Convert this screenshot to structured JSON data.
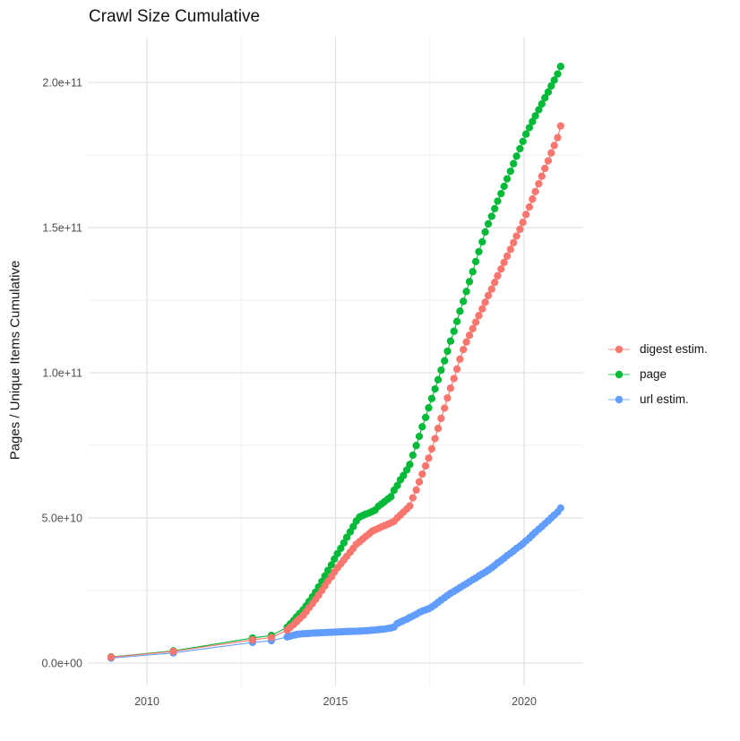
{
  "chart_data": {
    "type": "scatter",
    "title": "Crawl Size Cumulative",
    "xlabel": "",
    "ylabel": "Pages / Unique Items Cumulative",
    "values_unit": "1e9 (billions); y axis shown in scientific notation",
    "grid": "major and minor, light gray on white",
    "legend_position": "right",
    "xlim": [
      2008.5,
      2021.6
    ],
    "ylim": [
      0,
      215000000000
    ],
    "x_ticks": [
      {
        "value": 2010,
        "label": "2010"
      },
      {
        "value": 2015,
        "label": "2015"
      },
      {
        "value": 2020,
        "label": "2020"
      }
    ],
    "x_minor_ticks": [
      2012.5,
      2017.5
    ],
    "y_ticks": [
      {
        "value_e9": 0,
        "label": "0.0e+00"
      },
      {
        "value_e9": 50,
        "label": "5.0e+10"
      },
      {
        "value_e9": 100,
        "label": "1.0e+11"
      },
      {
        "value_e9": 150,
        "label": "1.5e+11"
      },
      {
        "value_e9": 200,
        "label": "2.0e+11"
      }
    ],
    "y_minor_ticks_e9": [
      25,
      75,
      125,
      175
    ],
    "series": [
      {
        "name": "digest estim.",
        "color": "#F8766D",
        "points_year_value_e9": [
          [
            2009.05,
            2.0
          ],
          [
            2010.7,
            4.0
          ],
          [
            2012.8,
            8.0
          ],
          [
            2013.3,
            8.8
          ],
          [
            2013.72,
            11.3
          ],
          [
            2013.8,
            12.3
          ],
          [
            2013.89,
            13.3
          ],
          [
            2013.97,
            14.3
          ],
          [
            2014.05,
            15.3
          ],
          [
            2014.14,
            16.4
          ],
          [
            2014.22,
            17.7
          ],
          [
            2014.3,
            19.1
          ],
          [
            2014.39,
            20.5
          ],
          [
            2014.47,
            21.9
          ],
          [
            2014.55,
            23.4
          ],
          [
            2014.64,
            25.0
          ],
          [
            2014.72,
            26.6
          ],
          [
            2014.8,
            28.2
          ],
          [
            2014.89,
            29.7
          ],
          [
            2014.97,
            31.3
          ],
          [
            2015.05,
            32.8
          ],
          [
            2015.14,
            34.2
          ],
          [
            2015.22,
            35.5
          ],
          [
            2015.3,
            36.8
          ],
          [
            2015.39,
            38.2
          ],
          [
            2015.47,
            39.5
          ],
          [
            2015.55,
            40.9
          ],
          [
            2015.64,
            41.8
          ],
          [
            2015.72,
            42.7
          ],
          [
            2015.8,
            43.6
          ],
          [
            2015.89,
            44.5
          ],
          [
            2015.97,
            45.4
          ],
          [
            2016.05,
            45.9
          ],
          [
            2016.14,
            46.4
          ],
          [
            2016.22,
            46.9
          ],
          [
            2016.3,
            47.3
          ],
          [
            2016.39,
            47.8
          ],
          [
            2016.47,
            48.3
          ],
          [
            2016.55,
            48.8
          ],
          [
            2016.64,
            50.0
          ],
          [
            2016.72,
            51.0
          ],
          [
            2016.8,
            52.0
          ],
          [
            2016.89,
            53.1
          ],
          [
            2016.97,
            54.1
          ],
          [
            2017.05,
            56.9
          ],
          [
            2017.14,
            59.6
          ],
          [
            2017.22,
            62.4
          ],
          [
            2017.3,
            65.1
          ],
          [
            2017.39,
            67.9
          ],
          [
            2017.47,
            70.6
          ],
          [
            2017.55,
            73.8
          ],
          [
            2017.64,
            77.3
          ],
          [
            2017.72,
            80.8
          ],
          [
            2017.8,
            84.3
          ],
          [
            2017.89,
            87.8
          ],
          [
            2017.97,
            91.3
          ],
          [
            2018.05,
            94.7
          ],
          [
            2018.14,
            98.0
          ],
          [
            2018.22,
            101.3
          ],
          [
            2018.3,
            104.7
          ],
          [
            2018.39,
            108.0
          ],
          [
            2018.47,
            110.6
          ],
          [
            2018.55,
            112.9
          ],
          [
            2018.64,
            115.2
          ],
          [
            2018.72,
            117.4
          ],
          [
            2018.8,
            119.7
          ],
          [
            2018.89,
            122.0
          ],
          [
            2018.97,
            124.3
          ],
          [
            2019.05,
            126.6
          ],
          [
            2019.14,
            128.8
          ],
          [
            2019.22,
            131.1
          ],
          [
            2019.3,
            133.4
          ],
          [
            2019.39,
            135.7
          ],
          [
            2019.47,
            138.0
          ],
          [
            2019.55,
            140.2
          ],
          [
            2019.64,
            142.5
          ],
          [
            2019.72,
            144.8
          ],
          [
            2019.8,
            147.1
          ],
          [
            2019.89,
            149.4
          ],
          [
            2019.97,
            151.8
          ],
          [
            2020.05,
            154.5
          ],
          [
            2020.14,
            157.1
          ],
          [
            2020.22,
            159.8
          ],
          [
            2020.3,
            162.4
          ],
          [
            2020.39,
            165.1
          ],
          [
            2020.47,
            167.7
          ],
          [
            2020.55,
            170.4
          ],
          [
            2020.64,
            173.0
          ],
          [
            2020.72,
            175.7
          ],
          [
            2020.8,
            178.3
          ],
          [
            2020.89,
            181.0
          ],
          [
            2020.97,
            185.0
          ]
        ]
      },
      {
        "name": "page",
        "color": "#00BA38",
        "points_year_value_e9": [
          [
            2009.05,
            2.1
          ],
          [
            2010.7,
            4.2
          ],
          [
            2012.8,
            8.6
          ],
          [
            2013.3,
            9.5
          ],
          [
            2013.72,
            12.3
          ],
          [
            2013.8,
            13.5
          ],
          [
            2013.89,
            14.7
          ],
          [
            2013.97,
            15.9
          ],
          [
            2014.05,
            17.1
          ],
          [
            2014.14,
            18.3
          ],
          [
            2014.22,
            19.7
          ],
          [
            2014.3,
            21.2
          ],
          [
            2014.39,
            22.8
          ],
          [
            2014.47,
            24.4
          ],
          [
            2014.55,
            26.2
          ],
          [
            2014.64,
            28.1
          ],
          [
            2014.72,
            30.0
          ],
          [
            2014.8,
            31.9
          ],
          [
            2014.89,
            33.8
          ],
          [
            2014.97,
            35.8
          ],
          [
            2015.05,
            37.7
          ],
          [
            2015.14,
            39.5
          ],
          [
            2015.22,
            41.4
          ],
          [
            2015.3,
            43.3
          ],
          [
            2015.39,
            45.2
          ],
          [
            2015.47,
            47.0
          ],
          [
            2015.55,
            48.9
          ],
          [
            2015.64,
            50.3
          ],
          [
            2015.72,
            50.8
          ],
          [
            2015.8,
            51.3
          ],
          [
            2015.89,
            51.7
          ],
          [
            2015.97,
            52.2
          ],
          [
            2016.05,
            52.7
          ],
          [
            2016.14,
            54.0
          ],
          [
            2016.22,
            54.8
          ],
          [
            2016.3,
            55.6
          ],
          [
            2016.39,
            56.5
          ],
          [
            2016.47,
            57.3
          ],
          [
            2016.55,
            59.5
          ],
          [
            2016.64,
            61.1
          ],
          [
            2016.72,
            63.1
          ],
          [
            2016.8,
            64.6
          ],
          [
            2016.89,
            66.5
          ],
          [
            2016.97,
            68.4
          ],
          [
            2017.05,
            71.6
          ],
          [
            2017.14,
            74.9
          ],
          [
            2017.22,
            78.1
          ],
          [
            2017.3,
            81.4
          ],
          [
            2017.39,
            84.6
          ],
          [
            2017.47,
            87.9
          ],
          [
            2017.55,
            91.1
          ],
          [
            2017.64,
            94.4
          ],
          [
            2017.72,
            97.6
          ],
          [
            2017.8,
            100.9
          ],
          [
            2017.89,
            104.1
          ],
          [
            2017.97,
            107.4
          ],
          [
            2018.05,
            110.9
          ],
          [
            2018.14,
            114.3
          ],
          [
            2018.22,
            117.7
          ],
          [
            2018.3,
            121.2
          ],
          [
            2018.39,
            124.6
          ],
          [
            2018.47,
            128.0
          ],
          [
            2018.55,
            131.4
          ],
          [
            2018.64,
            134.8
          ],
          [
            2018.72,
            138.3
          ],
          [
            2018.8,
            141.7
          ],
          [
            2018.89,
            145.1
          ],
          [
            2018.97,
            148.5
          ],
          [
            2019.05,
            151.3
          ],
          [
            2019.14,
            153.9
          ],
          [
            2019.22,
            156.5
          ],
          [
            2019.3,
            159.1
          ],
          [
            2019.39,
            161.7
          ],
          [
            2019.47,
            164.2
          ],
          [
            2019.55,
            166.8
          ],
          [
            2019.64,
            169.4
          ],
          [
            2019.72,
            172.0
          ],
          [
            2019.8,
            174.6
          ],
          [
            2019.89,
            177.2
          ],
          [
            2019.97,
            179.7
          ],
          [
            2020.05,
            182.2
          ],
          [
            2020.14,
            184.4
          ],
          [
            2020.22,
            186.5
          ],
          [
            2020.3,
            188.5
          ],
          [
            2020.39,
            190.6
          ],
          [
            2020.47,
            192.6
          ],
          [
            2020.55,
            194.7
          ],
          [
            2020.64,
            196.7
          ],
          [
            2020.72,
            198.8
          ],
          [
            2020.8,
            200.8
          ],
          [
            2020.89,
            202.9
          ],
          [
            2020.97,
            205.5
          ]
        ]
      },
      {
        "name": "url estim.",
        "color": "#619CFF",
        "points_year_value_e9": [
          [
            2009.05,
            1.7
          ],
          [
            2010.7,
            3.5
          ],
          [
            2012.8,
            7.1
          ],
          [
            2013.3,
            7.7
          ],
          [
            2013.72,
            9.0
          ],
          [
            2013.8,
            9.3
          ],
          [
            2013.89,
            9.6
          ],
          [
            2013.97,
            9.8
          ],
          [
            2014.05,
            10.0
          ],
          [
            2014.14,
            10.1
          ],
          [
            2014.22,
            10.15
          ],
          [
            2014.3,
            10.2
          ],
          [
            2014.39,
            10.3
          ],
          [
            2014.47,
            10.35
          ],
          [
            2014.55,
            10.4
          ],
          [
            2014.64,
            10.45
          ],
          [
            2014.72,
            10.5
          ],
          [
            2014.8,
            10.55
          ],
          [
            2014.89,
            10.6
          ],
          [
            2014.97,
            10.65
          ],
          [
            2015.05,
            10.7
          ],
          [
            2015.14,
            10.75
          ],
          [
            2015.22,
            10.8
          ],
          [
            2015.3,
            10.85
          ],
          [
            2015.39,
            10.9
          ],
          [
            2015.47,
            10.92
          ],
          [
            2015.55,
            10.95
          ],
          [
            2015.64,
            11.0
          ],
          [
            2015.72,
            11.05
          ],
          [
            2015.8,
            11.1
          ],
          [
            2015.89,
            11.2
          ],
          [
            2015.97,
            11.3
          ],
          [
            2016.05,
            11.4
          ],
          [
            2016.14,
            11.5
          ],
          [
            2016.22,
            11.6
          ],
          [
            2016.3,
            11.7
          ],
          [
            2016.39,
            11.9
          ],
          [
            2016.47,
            12.1
          ],
          [
            2016.55,
            12.4
          ],
          [
            2016.64,
            13.6
          ],
          [
            2016.72,
            14.1
          ],
          [
            2016.8,
            14.6
          ],
          [
            2016.89,
            15.1
          ],
          [
            2016.97,
            15.7
          ],
          [
            2017.05,
            16.2
          ],
          [
            2017.14,
            16.8
          ],
          [
            2017.22,
            17.4
          ],
          [
            2017.3,
            17.9
          ],
          [
            2017.39,
            18.3
          ],
          [
            2017.47,
            18.7
          ],
          [
            2017.55,
            19.3
          ],
          [
            2017.64,
            20.1
          ],
          [
            2017.72,
            20.9
          ],
          [
            2017.8,
            21.7
          ],
          [
            2017.89,
            22.5
          ],
          [
            2017.97,
            23.3
          ],
          [
            2018.05,
            24.0
          ],
          [
            2018.14,
            24.7
          ],
          [
            2018.22,
            25.3
          ],
          [
            2018.3,
            26.0
          ],
          [
            2018.39,
            26.7
          ],
          [
            2018.47,
            27.3
          ],
          [
            2018.55,
            28.0
          ],
          [
            2018.64,
            28.7
          ],
          [
            2018.72,
            29.3
          ],
          [
            2018.8,
            30.0
          ],
          [
            2018.89,
            30.7
          ],
          [
            2018.97,
            31.3
          ],
          [
            2019.05,
            32.0
          ],
          [
            2019.14,
            32.8
          ],
          [
            2019.22,
            33.6
          ],
          [
            2019.3,
            34.5
          ],
          [
            2019.39,
            35.3
          ],
          [
            2019.47,
            36.1
          ],
          [
            2019.55,
            37.0
          ],
          [
            2019.64,
            37.8
          ],
          [
            2019.72,
            38.6
          ],
          [
            2019.8,
            39.5
          ],
          [
            2019.89,
            40.3
          ],
          [
            2019.97,
            41.1
          ],
          [
            2020.05,
            42.1
          ],
          [
            2020.14,
            43.1
          ],
          [
            2020.22,
            44.1
          ],
          [
            2020.3,
            45.1
          ],
          [
            2020.39,
            46.1
          ],
          [
            2020.47,
            47.0
          ],
          [
            2020.55,
            48.0
          ],
          [
            2020.64,
            49.0
          ],
          [
            2020.72,
            50.0
          ],
          [
            2020.8,
            51.0
          ],
          [
            2020.89,
            52.0
          ],
          [
            2020.97,
            53.4
          ]
        ]
      }
    ]
  }
}
